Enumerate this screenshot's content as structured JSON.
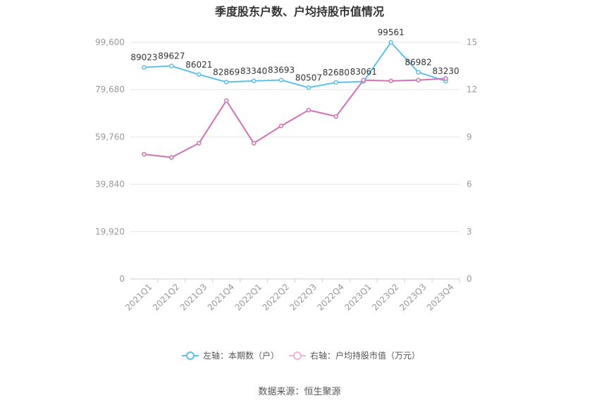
{
  "title": "季度股东户数、户均持股市值情况",
  "source": "数据来源：恒生聚源",
  "legend": {
    "left": "左轴：本期数（户）",
    "right": "右轴：户均持股市值（万元）"
  },
  "colors": {
    "left_series": "#5bc0eb",
    "right_series": "#d36fb3",
    "grid": "#e6e6e6",
    "axis_text": "#999999"
  },
  "chart_data": {
    "type": "line",
    "title": "季度股东户数、户均持股市值情况",
    "categories": [
      "2021Q1",
      "2021Q2",
      "2021Q3",
      "2021Q4",
      "2022Q1",
      "2022Q2",
      "2022Q3",
      "2022Q4",
      "2023Q1",
      "2023Q2",
      "2023Q3",
      "2023Q4"
    ],
    "left_axis": {
      "ticks": [
        "0",
        "19,920",
        "39,840",
        "59,760",
        "79,680",
        "99,600"
      ],
      "ylim": [
        0,
        99600
      ]
    },
    "right_axis": {
      "ticks": [
        "0",
        "3",
        "6",
        "9",
        "12",
        "15"
      ],
      "ylim": [
        0,
        15
      ]
    },
    "series": [
      {
        "name": "左轴：本期数（户）",
        "axis": "left",
        "values": [
          89023,
          89627,
          86021,
          82869,
          83340,
          83693,
          80507,
          82680,
          83061,
          99561,
          86982,
          83230
        ],
        "labels": [
          "89023",
          "89627",
          "86021",
          "82869",
          "83340",
          "83693",
          "80507",
          "82680",
          "83061",
          "99561",
          "86982",
          "83230"
        ]
      },
      {
        "name": "右轴：户均持股市值（万元）",
        "axis": "right",
        "values": [
          7.9,
          7.7,
          8.6,
          11.3,
          8.6,
          9.7,
          10.7,
          10.3,
          12.6,
          12.55,
          12.6,
          12.7
        ]
      }
    ]
  }
}
